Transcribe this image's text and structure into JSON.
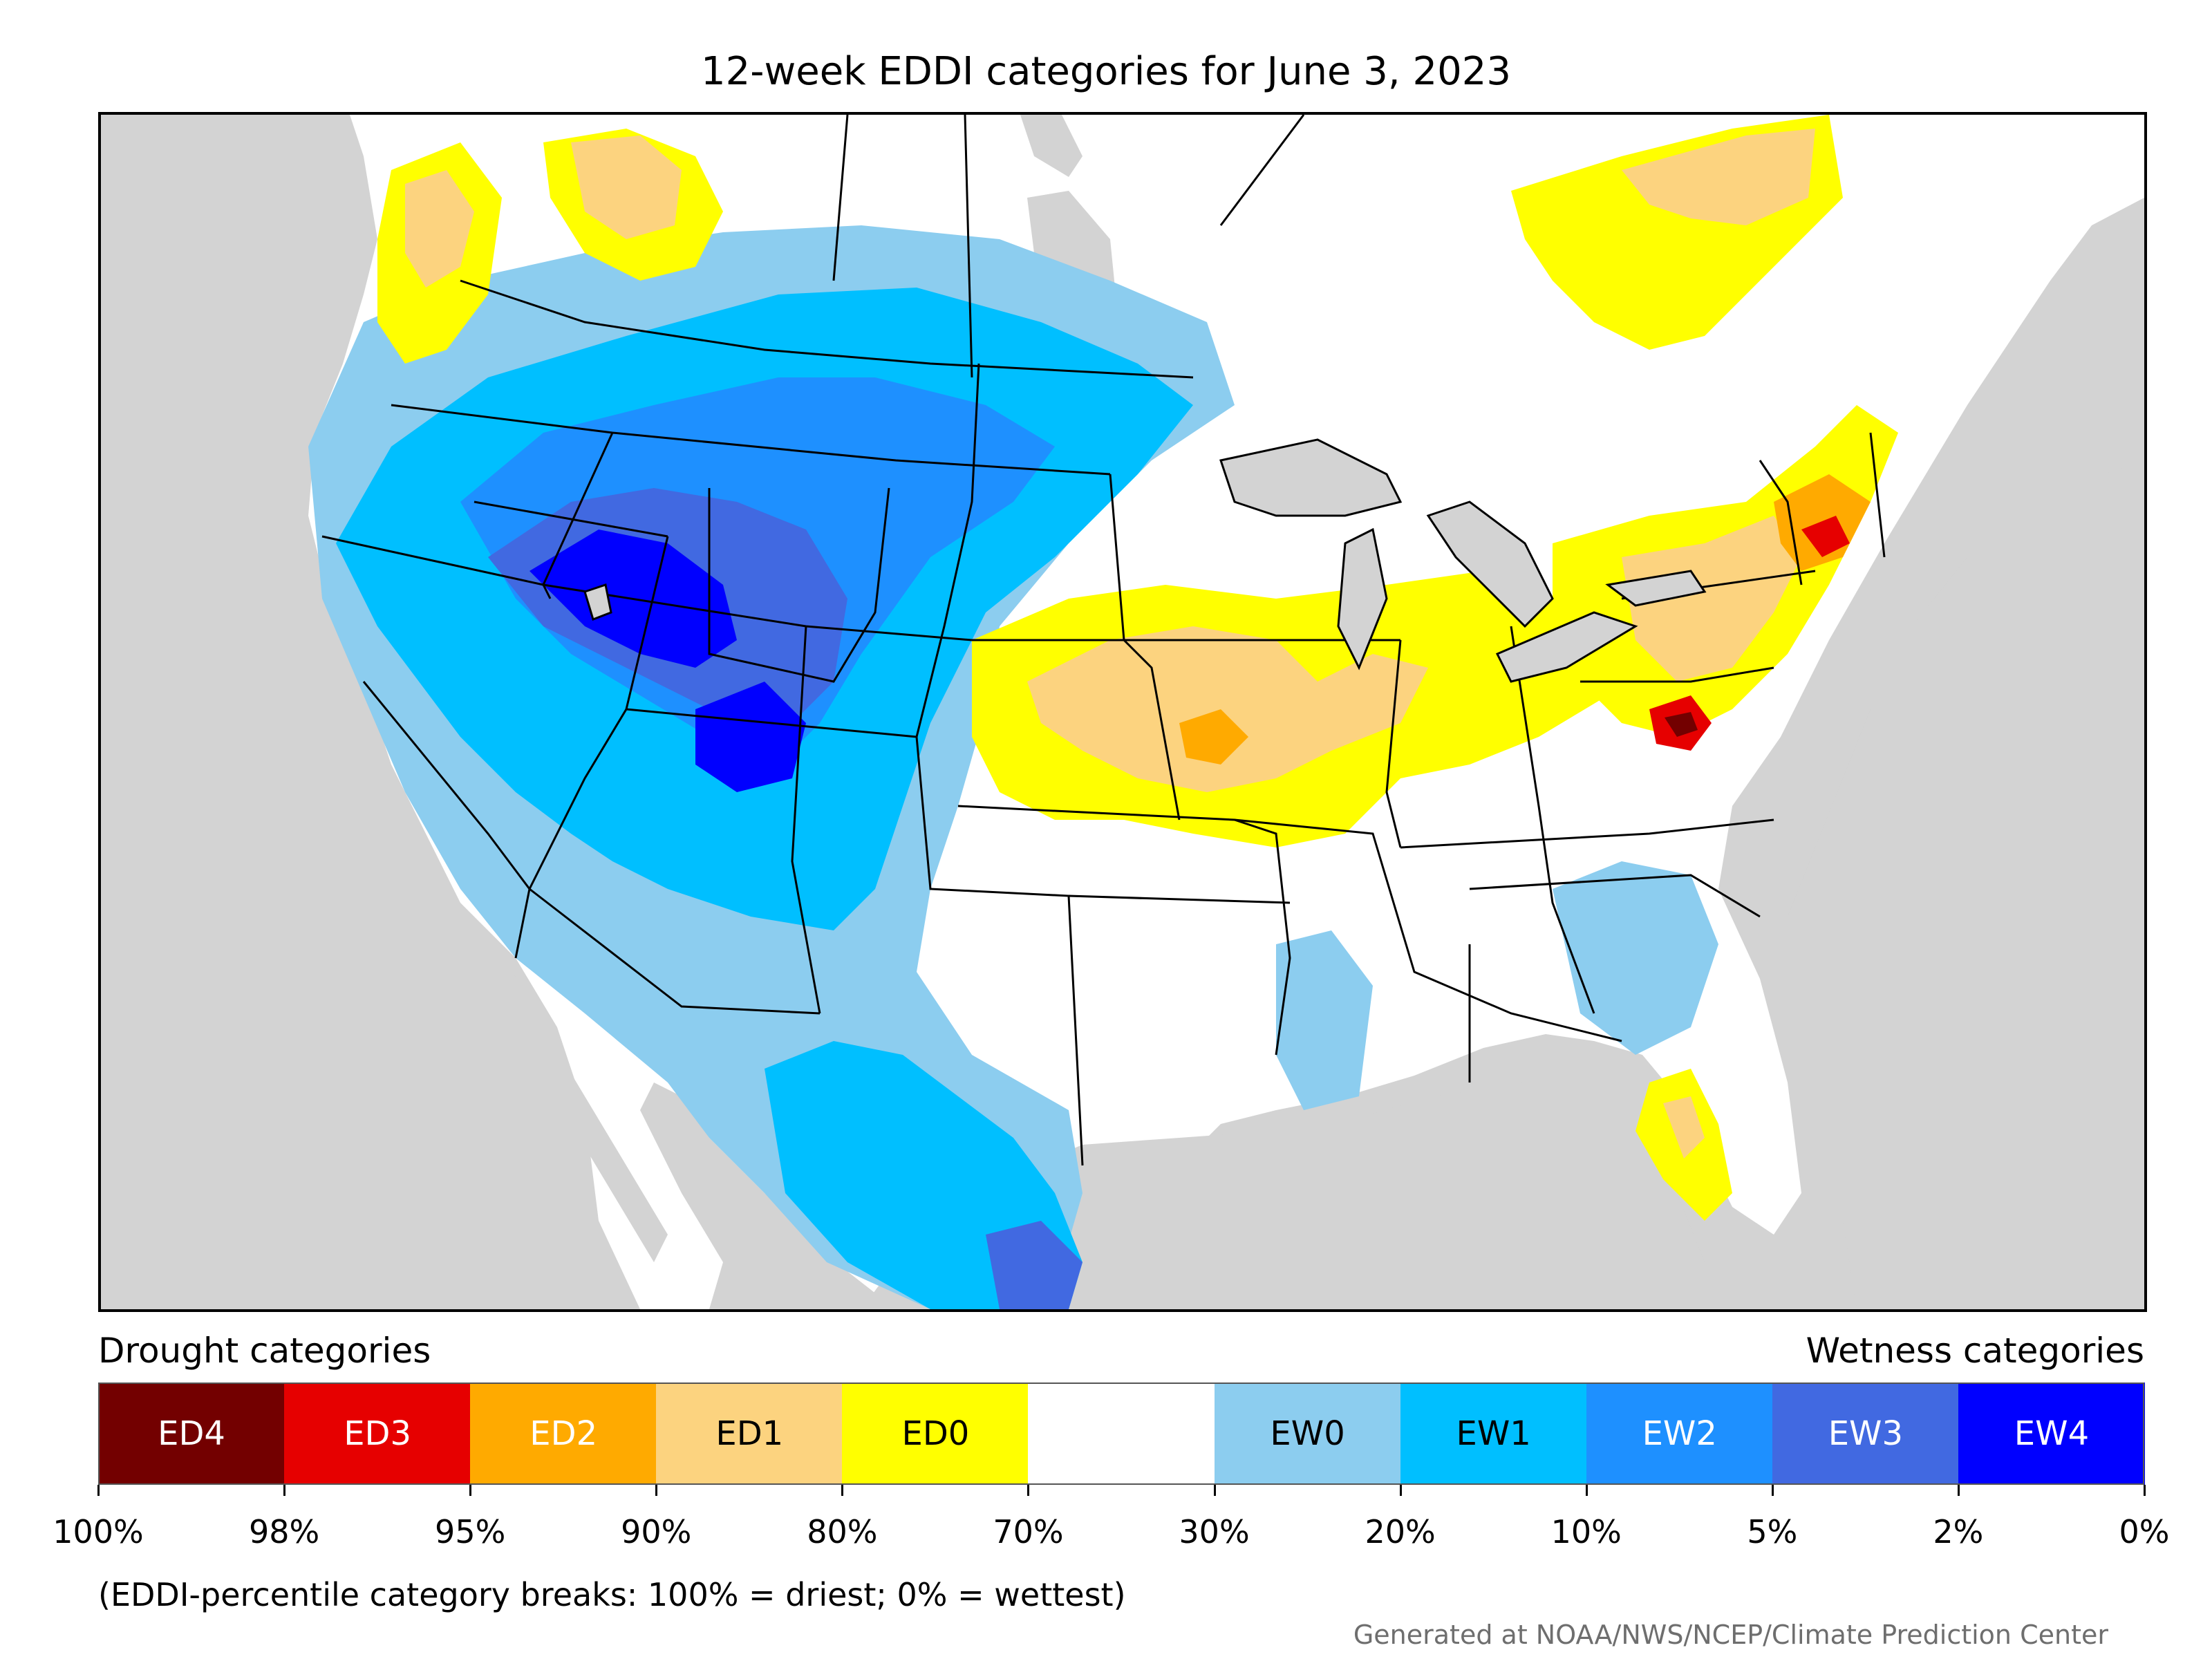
{
  "title": "12-week EDDI categories for June 3, 2023",
  "legend": {
    "drought_title": "Drought categories",
    "wetness_title": "Wetness categories",
    "categories": [
      {
        "label": "ED4",
        "color": "#730000",
        "text_color": "#ffffff"
      },
      {
        "label": "ED3",
        "color": "#e60000",
        "text_color": "#ffffff"
      },
      {
        "label": "ED2",
        "color": "#ffaa00",
        "text_color": "#ffffff"
      },
      {
        "label": "ED1",
        "color": "#fcd37f",
        "text_color": "#000000"
      },
      {
        "label": "ED0",
        "color": "#ffff00",
        "text_color": "#000000"
      },
      {
        "label": "",
        "color": "#ffffff",
        "text_color": "#000000"
      },
      {
        "label": "EW0",
        "color": "#8ccdef",
        "text_color": "#000000"
      },
      {
        "label": "EW1",
        "color": "#00bfff",
        "text_color": "#000000"
      },
      {
        "label": "EW2",
        "color": "#1e90ff",
        "text_color": "#ffffff"
      },
      {
        "label": "EW3",
        "color": "#4169e1",
        "text_color": "#ffffff"
      },
      {
        "label": "EW4",
        "color": "#0000ff",
        "text_color": "#ffffff"
      }
    ],
    "tick_labels": [
      "100%",
      "98%",
      "95%",
      "90%",
      "80%",
      "70%",
      "30%",
      "20%",
      "10%",
      "5%",
      "2%",
      "0%"
    ]
  },
  "note": "(EDDI-percentile category breaks: 100% = driest; 0% = wettest)",
  "credit": "Generated at NOAA/NWS/NCEP/Climate Prediction Center",
  "colors": {
    "background_outside_us": "#d3d3d3",
    "land_default": "#ffffff",
    "state_boundaries": "#000000"
  }
}
